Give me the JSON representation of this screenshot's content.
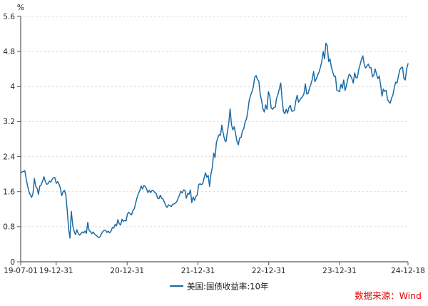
{
  "source": {
    "label": "数据来源：Wind",
    "color": "#e60000"
  },
  "legend": {
    "label": "美国:国债收益率:10年"
  },
  "chart_data": {
    "type": "line",
    "title": "",
    "unit": "%",
    "xlabel": "",
    "ylabel": "%",
    "ylim": [
      0,
      5.6
    ],
    "grid": "horizontal-dashed",
    "grid_color": "#d9d9d9",
    "axis_color": "#595959",
    "legend_position": "bottom-center",
    "yticks": [
      {
        "v": 0,
        "label": "0"
      },
      {
        "v": 0.8,
        "label": "0.8"
      },
      {
        "v": 1.6,
        "label": "1.6"
      },
      {
        "v": 2.4,
        "label": "2.4"
      },
      {
        "v": 3.2,
        "label": "3.2"
      },
      {
        "v": 4,
        "label": "4"
      },
      {
        "v": 4.8,
        "label": "4.8"
      },
      {
        "v": 5.6,
        "label": "5.6"
      }
    ],
    "xticks": [
      {
        "f": 0,
        "label": "19-07-01"
      },
      {
        "f": 0.0916,
        "label": "19-12-31"
      },
      {
        "f": 0.2749,
        "label": "20-12-31"
      },
      {
        "f": 0.4577,
        "label": "21-12-31"
      },
      {
        "f": 0.6404,
        "label": "22-12-31"
      },
      {
        "f": 0.8232,
        "label": "23-12-31"
      },
      {
        "f": 1,
        "label": "24-12-18"
      }
    ],
    "series": [
      {
        "name": "美国:国债收益率:10年",
        "color": "#1b6aa5",
        "sampling": "weekly, 2019-07-01 to 2024-12-18",
        "values": [
          2.03,
          2.05,
          2.06,
          2.08,
          1.9,
          1.74,
          1.6,
          1.53,
          1.47,
          1.56,
          1.9,
          1.72,
          1.68,
          1.54,
          1.73,
          1.76,
          1.84,
          1.94,
          1.83,
          1.77,
          1.78,
          1.84,
          1.82,
          1.88,
          1.92,
          1.92,
          1.79,
          1.83,
          1.77,
          1.68,
          1.51,
          1.6,
          1.63,
          1.52,
          1.17,
          0.76,
          0.54,
          1.15,
          0.84,
          0.7,
          0.62,
          0.73,
          0.65,
          0.61,
          0.64,
          0.68,
          0.66,
          0.7,
          0.65,
          0.9,
          0.71,
          0.69,
          0.64,
          0.68,
          0.63,
          0.61,
          0.58,
          0.55,
          0.57,
          0.64,
          0.69,
          0.72,
          0.72,
          0.67,
          0.7,
          0.66,
          0.7,
          0.78,
          0.77,
          0.85,
          0.82,
          0.96,
          0.87,
          0.84,
          0.97,
          0.92,
          0.95,
          0.93,
          1.09,
          1.13,
          1.09,
          1.07,
          1.17,
          1.21,
          1.34,
          1.46,
          1.56,
          1.62,
          1.73,
          1.66,
          1.74,
          1.72,
          1.66,
          1.58,
          1.63,
          1.58,
          1.63,
          1.62,
          1.58,
          1.56,
          1.45,
          1.44,
          1.52,
          1.45,
          1.43,
          1.36,
          1.28,
          1.24,
          1.3,
          1.28,
          1.26,
          1.31,
          1.32,
          1.34,
          1.37,
          1.45,
          1.52,
          1.61,
          1.57,
          1.64,
          1.63,
          1.45,
          1.56,
          1.54,
          1.64,
          1.35,
          1.48,
          1.4,
          1.49,
          1.52,
          1.76,
          1.78,
          1.76,
          1.78,
          1.91,
          2.03,
          1.93,
          1.97,
          1.72,
          2.0,
          2.15,
          2.48,
          2.38,
          2.72,
          2.83,
          2.9,
          2.89,
          3.12,
          2.93,
          2.78,
          2.74,
          2.96,
          3.16,
          3.49,
          3.13,
          3.01,
          3.08,
          2.93,
          2.75,
          2.67,
          2.83,
          2.84,
          2.98,
          3.04,
          3.19,
          3.26,
          3.45,
          3.69,
          3.8,
          3.88,
          4.0,
          4.21,
          4.25,
          4.16,
          4.12,
          3.82,
          3.68,
          3.49,
          3.42,
          3.58,
          3.48,
          3.88,
          3.79,
          3.51,
          3.48,
          3.52,
          3.53,
          3.74,
          3.82,
          3.95,
          4.08,
          3.7,
          3.43,
          3.38,
          3.48,
          3.39,
          3.52,
          3.57,
          3.44,
          3.44,
          3.46,
          3.67,
          3.8,
          3.64,
          3.69,
          3.74,
          3.77,
          3.84,
          4.06,
          3.83,
          3.84,
          3.96,
          4.05,
          4.16,
          4.34,
          4.11,
          4.18,
          4.26,
          4.33,
          4.44,
          4.57,
          4.8,
          4.63,
          4.99,
          4.93,
          4.57,
          4.63,
          4.44,
          4.33,
          4.23,
          4.23,
          3.91,
          3.9,
          3.88,
          4.05,
          3.96,
          4.15,
          3.91,
          4.02,
          4.17,
          4.28,
          4.25,
          4.18,
          4.08,
          4.31,
          4.2,
          4.2,
          4.39,
          4.5,
          4.62,
          4.7,
          4.5,
          4.42,
          4.47,
          4.51,
          4.43,
          4.43,
          4.22,
          4.26,
          4.4,
          4.28,
          4.18,
          4.24,
          4.03,
          3.78,
          3.94,
          3.89,
          3.91,
          3.71,
          3.65,
          3.62,
          3.74,
          3.81,
          3.98,
          4.1,
          4.08,
          4.24,
          4.38,
          4.43,
          4.44,
          4.18,
          4.15,
          4.4,
          4.52
        ]
      }
    ]
  }
}
